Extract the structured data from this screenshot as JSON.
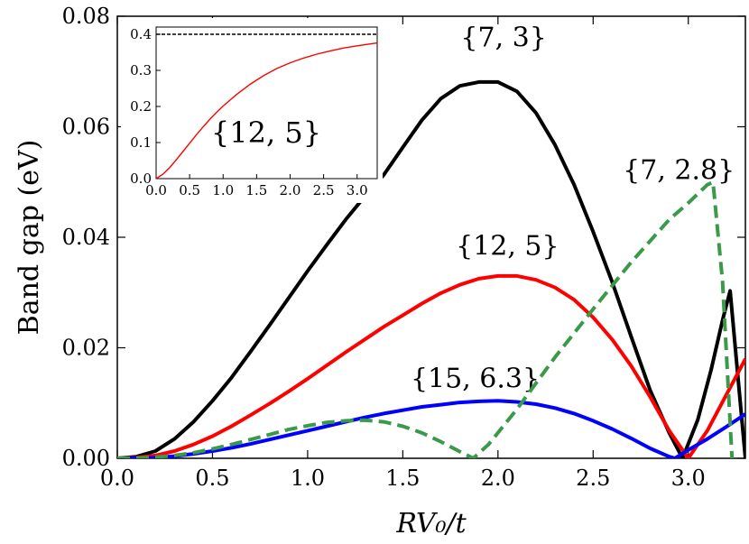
{
  "chart_data": [
    {
      "type": "line",
      "title": "",
      "xlabel": "RV₀/t",
      "ylabel": "Band gap (eV)",
      "xlim": [
        0.0,
        3.3
      ],
      "ylim": [
        0.0,
        0.08
      ],
      "xticks": [
        "0.0",
        "0.5",
        "1.0",
        "1.5",
        "2.0",
        "2.5",
        "3.0"
      ],
      "yticks": [
        "0.00",
        "0.02",
        "0.04",
        "0.06",
        "0.08"
      ],
      "grid": false,
      "series": [
        {
          "name": "{7, 3}",
          "color": "#000000",
          "dash": "solid",
          "label_at": [
            2.03,
            0.0745
          ],
          "points": [
            [
              0.0,
              0.0
            ],
            [
              0.1,
              0.0003
            ],
            [
              0.2,
              0.0013
            ],
            [
              0.3,
              0.0035
            ],
            [
              0.4,
              0.0066
            ],
            [
              0.5,
              0.0104
            ],
            [
              0.6,
              0.0146
            ],
            [
              0.7,
              0.0193
            ],
            [
              0.8,
              0.0241
            ],
            [
              0.9,
              0.029
            ],
            [
              1.0,
              0.0339
            ],
            [
              1.1,
              0.0386
            ],
            [
              1.2,
              0.0432
            ],
            [
              1.3,
              0.0474
            ],
            [
              1.4,
              0.0513
            ],
            [
              1.5,
              0.0563
            ],
            [
              1.6,
              0.0612
            ],
            [
              1.7,
              0.0651
            ],
            [
              1.8,
              0.0674
            ],
            [
              1.9,
              0.0681
            ],
            [
              2.0,
              0.0681
            ],
            [
              2.1,
              0.0664
            ],
            [
              2.2,
              0.0625
            ],
            [
              2.3,
              0.0567
            ],
            [
              2.4,
              0.0495
            ],
            [
              2.5,
              0.041
            ],
            [
              2.6,
              0.0319
            ],
            [
              2.7,
              0.022
            ],
            [
              2.8,
              0.0123
            ],
            [
              2.9,
              0.0046
            ],
            [
              2.97,
              0.0
            ],
            [
              3.05,
              0.007
            ],
            [
              3.12,
              0.016
            ],
            [
              3.18,
              0.025
            ],
            [
              3.22,
              0.0303
            ],
            [
              3.26,
              0.015
            ],
            [
              3.3,
              0.0
            ]
          ]
        },
        {
          "name": "{12, 5}",
          "color": "#ff0000",
          "dash": "solid",
          "label_at": [
            2.05,
            0.0368
          ],
          "points": [
            [
              0.0,
              0.0
            ],
            [
              0.1,
              0.0001
            ],
            [
              0.2,
              0.0005
            ],
            [
              0.3,
              0.0013
            ],
            [
              0.4,
              0.0025
            ],
            [
              0.5,
              0.004
            ],
            [
              0.6,
              0.0058
            ],
            [
              0.7,
              0.0078
            ],
            [
              0.8,
              0.0099
            ],
            [
              0.9,
              0.0121
            ],
            [
              1.0,
              0.0144
            ],
            [
              1.1,
              0.0168
            ],
            [
              1.2,
              0.0192
            ],
            [
              1.3,
              0.0215
            ],
            [
              1.4,
              0.0238
            ],
            [
              1.5,
              0.0259
            ],
            [
              1.6,
              0.028
            ],
            [
              1.7,
              0.0299
            ],
            [
              1.8,
              0.0314
            ],
            [
              1.9,
              0.0325
            ],
            [
              2.0,
              0.033
            ],
            [
              2.1,
              0.033
            ],
            [
              2.2,
              0.0323
            ],
            [
              2.3,
              0.0309
            ],
            [
              2.4,
              0.0287
            ],
            [
              2.5,
              0.0255
            ],
            [
              2.6,
              0.0215
            ],
            [
              2.7,
              0.0167
            ],
            [
              2.8,
              0.0111
            ],
            [
              2.9,
              0.005
            ],
            [
              3.0,
              0.0
            ],
            [
              3.1,
              0.005
            ],
            [
              3.2,
              0.0115
            ],
            [
              3.3,
              0.018
            ]
          ]
        },
        {
          "name": "{15, 6.3}",
          "color": "#0000ff",
          "dash": "solid",
          "label_at": [
            1.88,
            0.0128
          ],
          "points": [
            [
              0.0,
              0.0
            ],
            [
              0.1,
              2e-05
            ],
            [
              0.2,
              0.0001
            ],
            [
              0.3,
              0.0004
            ],
            [
              0.4,
              0.0008
            ],
            [
              0.5,
              0.0013
            ],
            [
              0.6,
              0.0019
            ],
            [
              0.7,
              0.0026
            ],
            [
              0.8,
              0.0034
            ],
            [
              0.9,
              0.0042
            ],
            [
              1.0,
              0.005
            ],
            [
              1.1,
              0.0058
            ],
            [
              1.2,
              0.0066
            ],
            [
              1.3,
              0.0074
            ],
            [
              1.4,
              0.0081
            ],
            [
              1.5,
              0.0087
            ],
            [
              1.6,
              0.0093
            ],
            [
              1.7,
              0.0097
            ],
            [
              1.8,
              0.0101
            ],
            [
              1.9,
              0.0103
            ],
            [
              2.0,
              0.0104
            ],
            [
              2.1,
              0.0102
            ],
            [
              2.2,
              0.0098
            ],
            [
              2.3,
              0.0091
            ],
            [
              2.4,
              0.0081
            ],
            [
              2.5,
              0.0068
            ],
            [
              2.6,
              0.0053
            ],
            [
              2.7,
              0.0036
            ],
            [
              2.8,
              0.0018
            ],
            [
              2.9,
              0.0003
            ],
            [
              2.93,
              0.0
            ],
            [
              3.0,
              0.0015
            ],
            [
              3.1,
              0.0035
            ],
            [
              3.2,
              0.0057
            ],
            [
              3.3,
              0.008
            ]
          ]
        },
        {
          "name": "{7, 2.8}",
          "color": "#3a9a4a",
          "dash": "dashed",
          "label_at": [
            2.95,
            0.0505
          ],
          "points": [
            [
              0.0,
              0.0
            ],
            [
              0.1,
              5e-05
            ],
            [
              0.2,
              0.0002
            ],
            [
              0.3,
              0.0005
            ],
            [
              0.4,
              0.001
            ],
            [
              0.5,
              0.0017
            ],
            [
              0.6,
              0.0025
            ],
            [
              0.7,
              0.0034
            ],
            [
              0.8,
              0.0043
            ],
            [
              0.9,
              0.0052
            ],
            [
              1.0,
              0.0059
            ],
            [
              1.1,
              0.0065
            ],
            [
              1.2,
              0.0068
            ],
            [
              1.3,
              0.0069
            ],
            [
              1.4,
              0.0066
            ],
            [
              1.5,
              0.0058
            ],
            [
              1.6,
              0.0046
            ],
            [
              1.7,
              0.003
            ],
            [
              1.8,
              0.0012
            ],
            [
              1.87,
              0.0
            ],
            [
              1.95,
              0.0025
            ],
            [
              2.1,
              0.0089
            ],
            [
              2.3,
              0.0183
            ],
            [
              2.5,
              0.027
            ],
            [
              2.7,
              0.0355
            ],
            [
              2.9,
              0.0432
            ],
            [
              3.0,
              0.0462
            ],
            [
              3.1,
              0.0495
            ],
            [
              3.13,
              0.05
            ],
            [
              3.18,
              0.032
            ],
            [
              3.23,
              0.0
            ]
          ]
        }
      ]
    },
    {
      "type": "line",
      "title": "",
      "xlim": [
        0.0,
        3.3
      ],
      "ylim": [
        0.0,
        0.42
      ],
      "xticks": [
        "0.0",
        "0.5",
        "1.0",
        "1.5",
        "2.0",
        "2.5",
        "3.0"
      ],
      "yticks": [
        "0.0",
        "0.1",
        "0.2",
        "0.3",
        "0.4"
      ],
      "annotation": "{12, 5}",
      "series": [
        {
          "name": "",
          "color": "#ff0000",
          "dash": "solid",
          "points": [
            [
              0.0,
              0.0
            ],
            [
              0.1,
              0.012
            ],
            [
              0.2,
              0.03
            ],
            [
              0.3,
              0.052
            ],
            [
              0.4,
              0.075
            ],
            [
              0.5,
              0.098
            ],
            [
              0.6,
              0.121
            ],
            [
              0.7,
              0.143
            ],
            [
              0.8,
              0.164
            ],
            [
              0.9,
              0.183
            ],
            [
              1.0,
              0.201
            ],
            [
              1.2,
              0.233
            ],
            [
              1.4,
              0.261
            ],
            [
              1.6,
              0.285
            ],
            [
              1.8,
              0.305
            ],
            [
              2.0,
              0.321
            ],
            [
              2.2,
              0.334
            ],
            [
              2.4,
              0.345
            ],
            [
              2.6,
              0.354
            ],
            [
              2.8,
              0.362
            ],
            [
              3.0,
              0.368
            ],
            [
              3.3,
              0.376
            ]
          ]
        },
        {
          "name": "",
          "color": "#000000",
          "dash": "dashed",
          "points": [
            [
              0.0,
              0.4
            ],
            [
              3.3,
              0.4
            ]
          ]
        }
      ]
    }
  ]
}
